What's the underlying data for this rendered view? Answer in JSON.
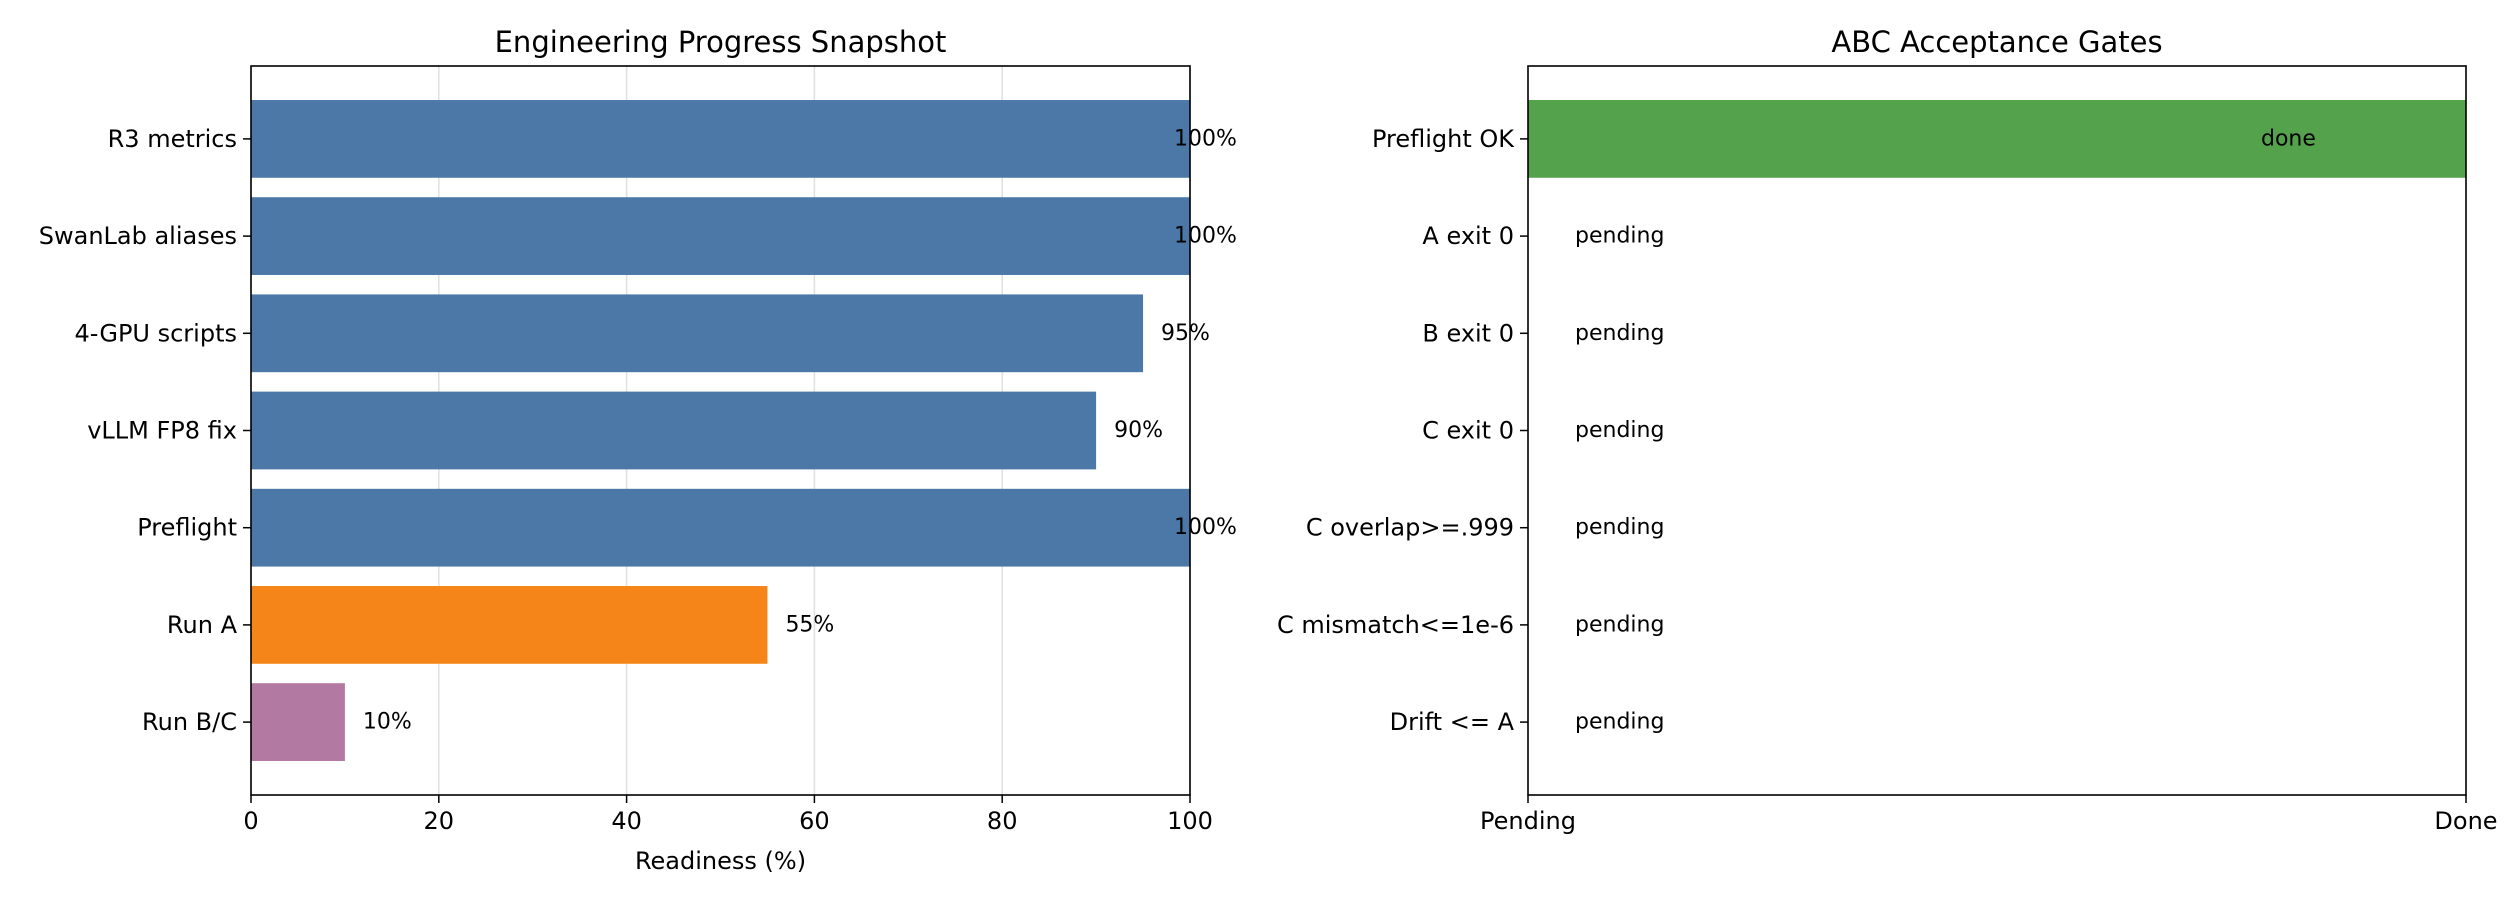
{
  "chart_data": [
    {
      "type": "bar",
      "orientation": "horizontal",
      "title": "Engineering Progress Snapshot",
      "xlabel": "Readiness (%)",
      "ylabel": "",
      "categories": [
        "R3 metrics",
        "SwanLab aliases",
        "4-GPU scripts",
        "vLLM FP8 fix",
        "Preflight",
        "Run A",
        "Run B/C"
      ],
      "values": [
        100,
        100,
        95,
        90,
        100,
        55,
        10
      ],
      "value_labels": [
        "100%",
        "100%",
        "95%",
        "90%",
        "100%",
        "55%",
        "10%"
      ],
      "bar_colors": [
        "#4c78a8",
        "#4c78a8",
        "#4c78a8",
        "#4c78a8",
        "#4c78a8",
        "#f58518",
        "#b279a2"
      ],
      "xlim": [
        0,
        100
      ],
      "xticks": [
        0,
        20,
        40,
        60,
        80,
        100
      ],
      "xtick_labels": [
        "0",
        "20",
        "40",
        "60",
        "80",
        "100"
      ],
      "grid": "vertical"
    },
    {
      "type": "bar",
      "orientation": "horizontal",
      "title": "ABC Acceptance Gates",
      "xlabel": "",
      "ylabel": "",
      "categories": [
        "Preflight OK",
        "A exit 0",
        "B exit 0",
        "C exit 0",
        "C overlap>=.999",
        "C mismatch<=1e-6",
        "Drift <= A"
      ],
      "values": [
        1,
        0,
        0,
        0,
        0,
        0,
        0
      ],
      "value_labels": [
        "done",
        "pending",
        "pending",
        "pending",
        "pending",
        "pending",
        "pending"
      ],
      "bar_colors": [
        "#54a24b",
        "#54a24b",
        "#54a24b",
        "#54a24b",
        "#54a24b",
        "#54a24b",
        "#54a24b"
      ],
      "xlim": [
        0,
        1
      ],
      "xticks": [
        0,
        1
      ],
      "xtick_labels": [
        "Pending",
        "Done"
      ],
      "grid": "none"
    }
  ]
}
